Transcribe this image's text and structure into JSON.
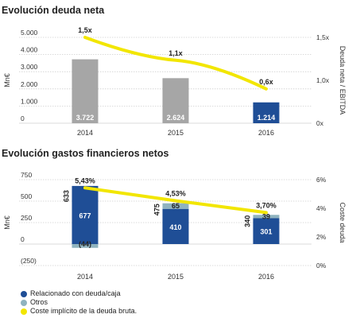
{
  "chart_data": [
    {
      "type": "bar",
      "title": "Evolución deuda neta",
      "categories": [
        "2014",
        "2015",
        "2016"
      ],
      "ylabel": "Mn€",
      "yticks": [
        "5.000",
        "4.000",
        "3.000",
        "2.000",
        "1.000",
        "0"
      ],
      "ylim": [
        0,
        5000
      ],
      "y2label": "Deuda neta / EBITDA",
      "y2ticks": [
        "1,5x",
        "1,0x",
        "0x"
      ],
      "y2lim": [
        0,
        1.5
      ],
      "series": [
        {
          "name": "",
          "values": [
            3722,
            2624,
            1214
          ],
          "labels": [
            "3.722",
            "2.624",
            "1.214"
          ],
          "colors": [
            "#a6a6a6",
            "#a6a6a6",
            "#1f4e96"
          ]
        }
      ],
      "line": {
        "values": [
          1.5,
          1.1,
          0.6
        ],
        "labels": [
          "1,5x",
          "1,1x",
          "0,6x"
        ],
        "color": "#f2e600"
      },
      "grid": true
    },
    {
      "type": "bar",
      "title": "Evolución gastos financieros netos",
      "categories": [
        "2014",
        "2015",
        "2016"
      ],
      "ylabel": "Mn€",
      "yticks": [
        "750",
        "500",
        "250",
        "0",
        "(250)"
      ],
      "ylim": [
        -250,
        750
      ],
      "y2label": "Coste deuda",
      "y2ticks": [
        "6%",
        "4%",
        "2%",
        "0%"
      ],
      "y2lim": [
        0,
        6
      ],
      "series": [
        {
          "name": "Relacionado con deuda/caja",
          "values": [
            677,
            410,
            301
          ],
          "labels": [
            "677",
            "410",
            "301"
          ],
          "color": "#1f4e96"
        },
        {
          "name": "Otros",
          "values": [
            -44,
            65,
            39
          ],
          "labels": [
            "(44)",
            "65",
            "39"
          ],
          "color": "#8fb3bf"
        }
      ],
      "totals": {
        "values": [
          633,
          475,
          340
        ],
        "labels": [
          "633",
          "475",
          "340"
        ]
      },
      "line": {
        "name": "Coste implícito de la deuda bruta.",
        "values": [
          5.43,
          4.53,
          3.7
        ],
        "labels": [
          "5,43%",
          "4,53%",
          "3,70%"
        ],
        "color": "#f2e600"
      },
      "grid": true
    }
  ]
}
